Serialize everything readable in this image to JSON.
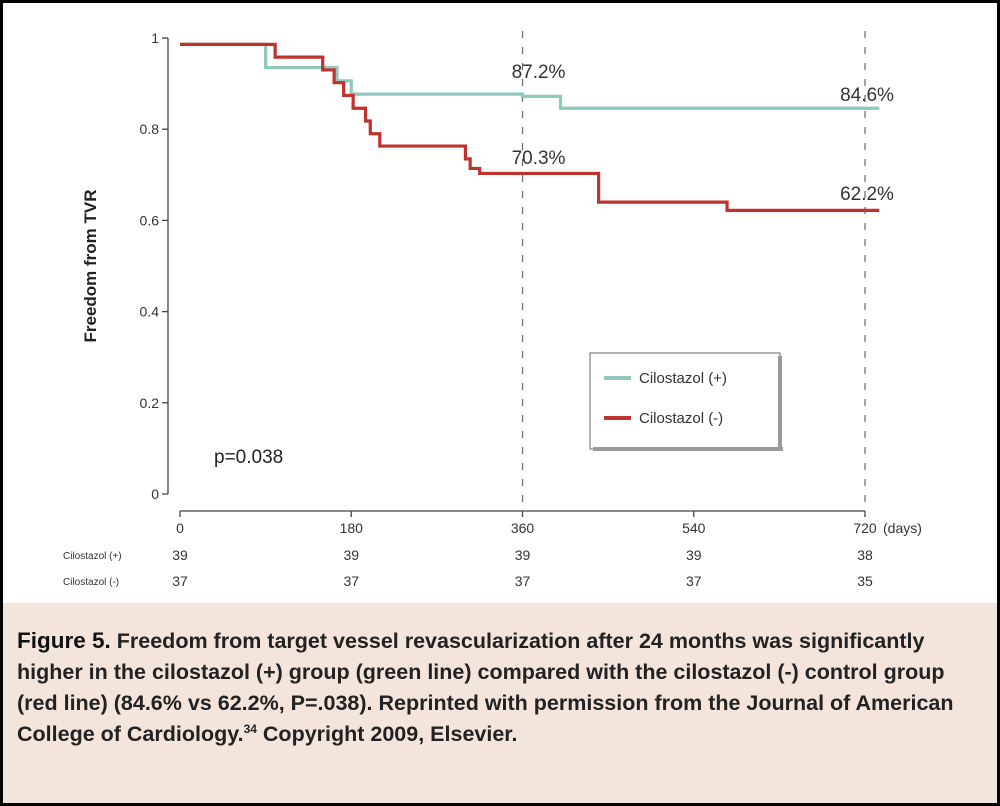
{
  "chart_data": {
    "type": "line",
    "step": true,
    "title": "",
    "xlabel": "(days)",
    "ylabel": "Freedom from TVR",
    "xlim": [
      0,
      735
    ],
    "ylim": [
      0,
      1
    ],
    "x_ticks": [
      0,
      180,
      360,
      540,
      720
    ],
    "x_tick_labels": [
      "0",
      "180",
      "360",
      "540",
      "720"
    ],
    "y_ticks": [
      0,
      0.2,
      0.4,
      0.6,
      0.8,
      1
    ],
    "y_tick_labels": [
      "0",
      "0.2",
      "0.4",
      "0.6",
      "0.8",
      "1"
    ],
    "reference_lines_x": [
      360,
      720
    ],
    "series": [
      {
        "name": "Cilostazol (+)",
        "color": "#8fc9bc",
        "x": [
          0,
          84,
          90,
          155,
          165,
          180,
          360,
          400,
          735
        ],
        "y": [
          0.986,
          0.986,
          0.935,
          0.935,
          0.906,
          0.877,
          0.872,
          0.846,
          0.846
        ]
      },
      {
        "name": "Cilostazol (-)",
        "color": "#c0322c",
        "x": [
          0,
          100,
          100,
          150,
          162,
          172,
          182,
          195,
          200,
          210,
          300,
          305,
          315,
          440,
          575,
          735
        ],
        "y": [
          0.986,
          0.986,
          0.958,
          0.93,
          0.902,
          0.874,
          0.846,
          0.818,
          0.79,
          0.763,
          0.735,
          0.714,
          0.703,
          0.64,
          0.622,
          0.622
        ]
      }
    ],
    "annotations": [
      {
        "text": "87.2%",
        "series": "Cilostazol (+)",
        "x": 360
      },
      {
        "text": "84.6%",
        "series": "Cilostazol (+)",
        "x": 720
      },
      {
        "text": "70.3%",
        "series": "Cilostazol (-)",
        "x": 360
      },
      {
        "text": "62.2%",
        "series": "Cilostazol (-)",
        "x": 720
      }
    ],
    "p_value": "p=0.038",
    "legend": {
      "placement": "center-right",
      "entries": [
        "Cilostazol (+)",
        "Cilostazol (-)"
      ]
    },
    "risk_table": {
      "rows": [
        {
          "label": "Cilostazol (+)",
          "counts": [
            "39",
            "39",
            "39",
            "39",
            "38"
          ]
        },
        {
          "label": "Cilostazol (-)",
          "counts": [
            "37",
            "37",
            "37",
            "37",
            "35"
          ]
        }
      ]
    }
  },
  "caption": {
    "figure_number": "Figure 5.",
    "text": "Freedom from target vessel revascularization after 24 months was significantly higher in the cilostazol (+) group (green line) compared with the cilostazol (-) control group (red line) (84.6% vs 62.2%, P=.038). Reprinted with permission from the Journal of American College of Cardiology.",
    "reference": "34",
    "tail": "Copyright 2009, Elsevier."
  }
}
